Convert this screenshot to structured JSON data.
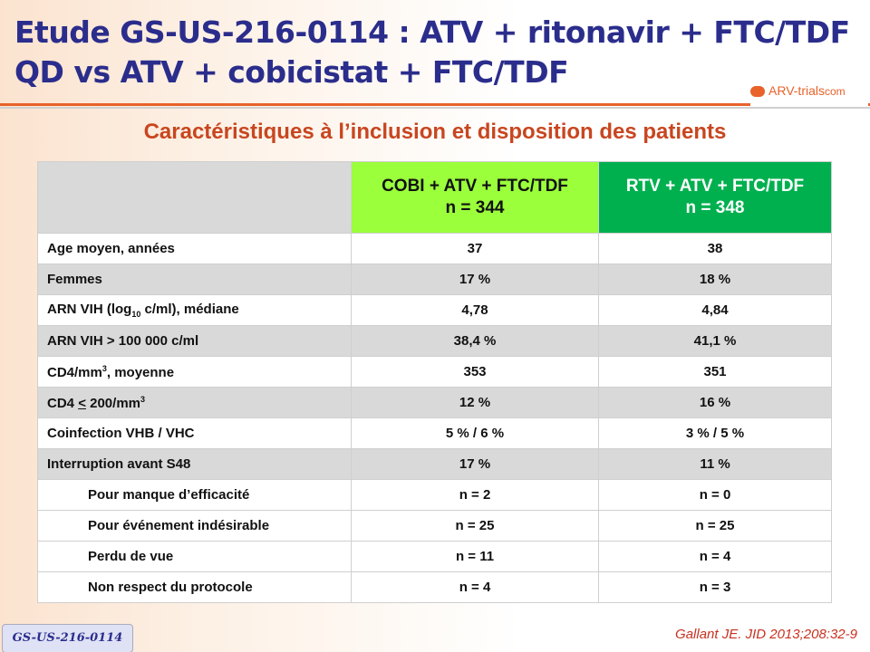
{
  "title_line1": "Etude GS-US-216-0114 : ATV + ritonavir + FTC/TDF",
  "title_line2": "QD vs ATV + cobicistat + FTC/TDF",
  "logo": {
    "text": "ARV-trials",
    "suffix": "com"
  },
  "subtitle": "Caractéristiques à l’inclusion et disposition des patients",
  "columns": [
    {
      "name": "COBI + ATV + FTC/TDF",
      "n": "n = 344"
    },
    {
      "name": "RTV + ATV + FTC/TDF",
      "n": "n = 348"
    }
  ],
  "rows": [
    {
      "label": "Age moyen, années",
      "a": "37",
      "b": "38"
    },
    {
      "label": "Femmes",
      "a": "17 %",
      "b": "18 %"
    },
    {
      "label_pre": "ARN VIH (log",
      "label_sub": "10",
      "label_post": " c/ml), médiane",
      "a": "4,78",
      "b": "4,84"
    },
    {
      "label": "ARN VIH > 100 000 c/ml",
      "a": "38,4 %",
      "b": "41,1 %"
    },
    {
      "label_pre": "CD4/mm",
      "label_sup": "3",
      "label_post": ", moyenne",
      "a": "353",
      "b": "351"
    },
    {
      "label_pre": "CD4 ",
      "label_u": "<",
      "label_mid": " 200/mm",
      "label_sup": "3",
      "a": "12 %",
      "b": "16 %"
    },
    {
      "label": "Coinfection VHB / VHC",
      "a": "5 % / 6 %",
      "b": "3 % / 5 %"
    },
    {
      "label": "Interruption avant S48",
      "a": "17 %",
      "b": "11 %"
    },
    {
      "label": "Pour manque d’efficacité",
      "a": "n = 2",
      "b": "n = 0"
    },
    {
      "label": "Pour événement indésirable",
      "a": "n = 25",
      "b": "n = 25"
    },
    {
      "label": "Perdu de vue",
      "a": "n = 11",
      "b": "n = 4"
    },
    {
      "label": "Non respect du protocole",
      "a": "n = 4",
      "b": "n = 3"
    }
  ],
  "badge": "GS-US-216-0114",
  "reference": "Gallant JE. JID 2013;208:32-9"
}
